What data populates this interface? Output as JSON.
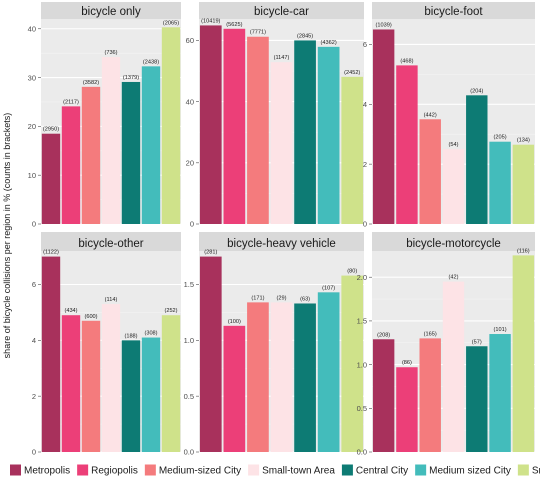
{
  "chart_data": {
    "type": "bar",
    "ylabel": "share of bicycle collisions per region in % (counts in brackets)",
    "xlabel": "",
    "legend_position": "bottom",
    "grid": true,
    "categories": [
      "Metropolis",
      "Regiopolis",
      "Medium-sized City",
      "Small-town Area",
      "Central City",
      "Medium sized City",
      "Small-town Area"
    ],
    "colors": [
      "#a8315c",
      "#ec3f78",
      "#f47b7d",
      "#fde3e6",
      "#0d7b74",
      "#43bcbb",
      "#cfe28a"
    ],
    "panels": [
      {
        "title": "bicycle only",
        "ylim": [
          0,
          42
        ],
        "yticks": [
          0,
          10,
          20,
          30,
          40
        ],
        "values": [
          18.5,
          24.1,
          28.1,
          34.2,
          29.1,
          32.3,
          40.3
        ],
        "counts": [
          "(2950)",
          "(2117)",
          "(3582)",
          "(736)",
          "(1379)",
          "(2438)",
          "(2065)"
        ]
      },
      {
        "title": "bicycle-car",
        "ylim": [
          0,
          67
        ],
        "yticks": [
          0,
          20,
          40,
          60
        ],
        "values": [
          64.9,
          63.8,
          61.2,
          52.9,
          60.0,
          57.9,
          48.1
        ],
        "counts": [
          "(10419)",
          "(5625)",
          "(7771)",
          "(1147)",
          "(2845)",
          "(4362)",
          "(2452)"
        ]
      },
      {
        "title": "bicycle-foot",
        "ylim": [
          0,
          6.85
        ],
        "yticks": [
          0,
          2,
          4,
          6
        ],
        "values": [
          6.5,
          5.3,
          3.5,
          2.5,
          4.3,
          2.75,
          2.65
        ],
        "counts": [
          "(1039)",
          "(468)",
          "(442)",
          "(54)",
          "(204)",
          "(205)",
          "(134)"
        ]
      },
      {
        "title": "bicycle-other",
        "ylim": [
          0,
          7.2
        ],
        "yticks": [
          0,
          2,
          4,
          6
        ],
        "values": [
          7.0,
          4.9,
          4.7,
          5.3,
          4.0,
          4.1,
          4.9
        ],
        "counts": [
          "(1122)",
          "(434)",
          "(600)",
          "(114)",
          "(188)",
          "(308)",
          "(252)"
        ]
      },
      {
        "title": "bicycle-heavy vehicle",
        "ylim": [
          0,
          1.8
        ],
        "yticks": [
          0.0,
          0.5,
          1.0,
          1.5
        ],
        "values": [
          1.75,
          1.13,
          1.34,
          1.34,
          1.33,
          1.43,
          1.58
        ],
        "counts": [
          "(281)",
          "(100)",
          "(171)",
          "(29)",
          "(63)",
          "(107)",
          "(80)"
        ]
      },
      {
        "title": "bicycle-motorcycle",
        "ylim": [
          0,
          2.3
        ],
        "yticks": [
          0.0,
          0.5,
          1.0,
          1.5,
          2.0
        ],
        "values": [
          1.29,
          0.97,
          1.3,
          1.95,
          1.21,
          1.35,
          2.25
        ],
        "counts": [
          "(208)",
          "(86)",
          "(165)",
          "(42)",
          "(57)",
          "(101)",
          "(116)"
        ]
      }
    ]
  }
}
